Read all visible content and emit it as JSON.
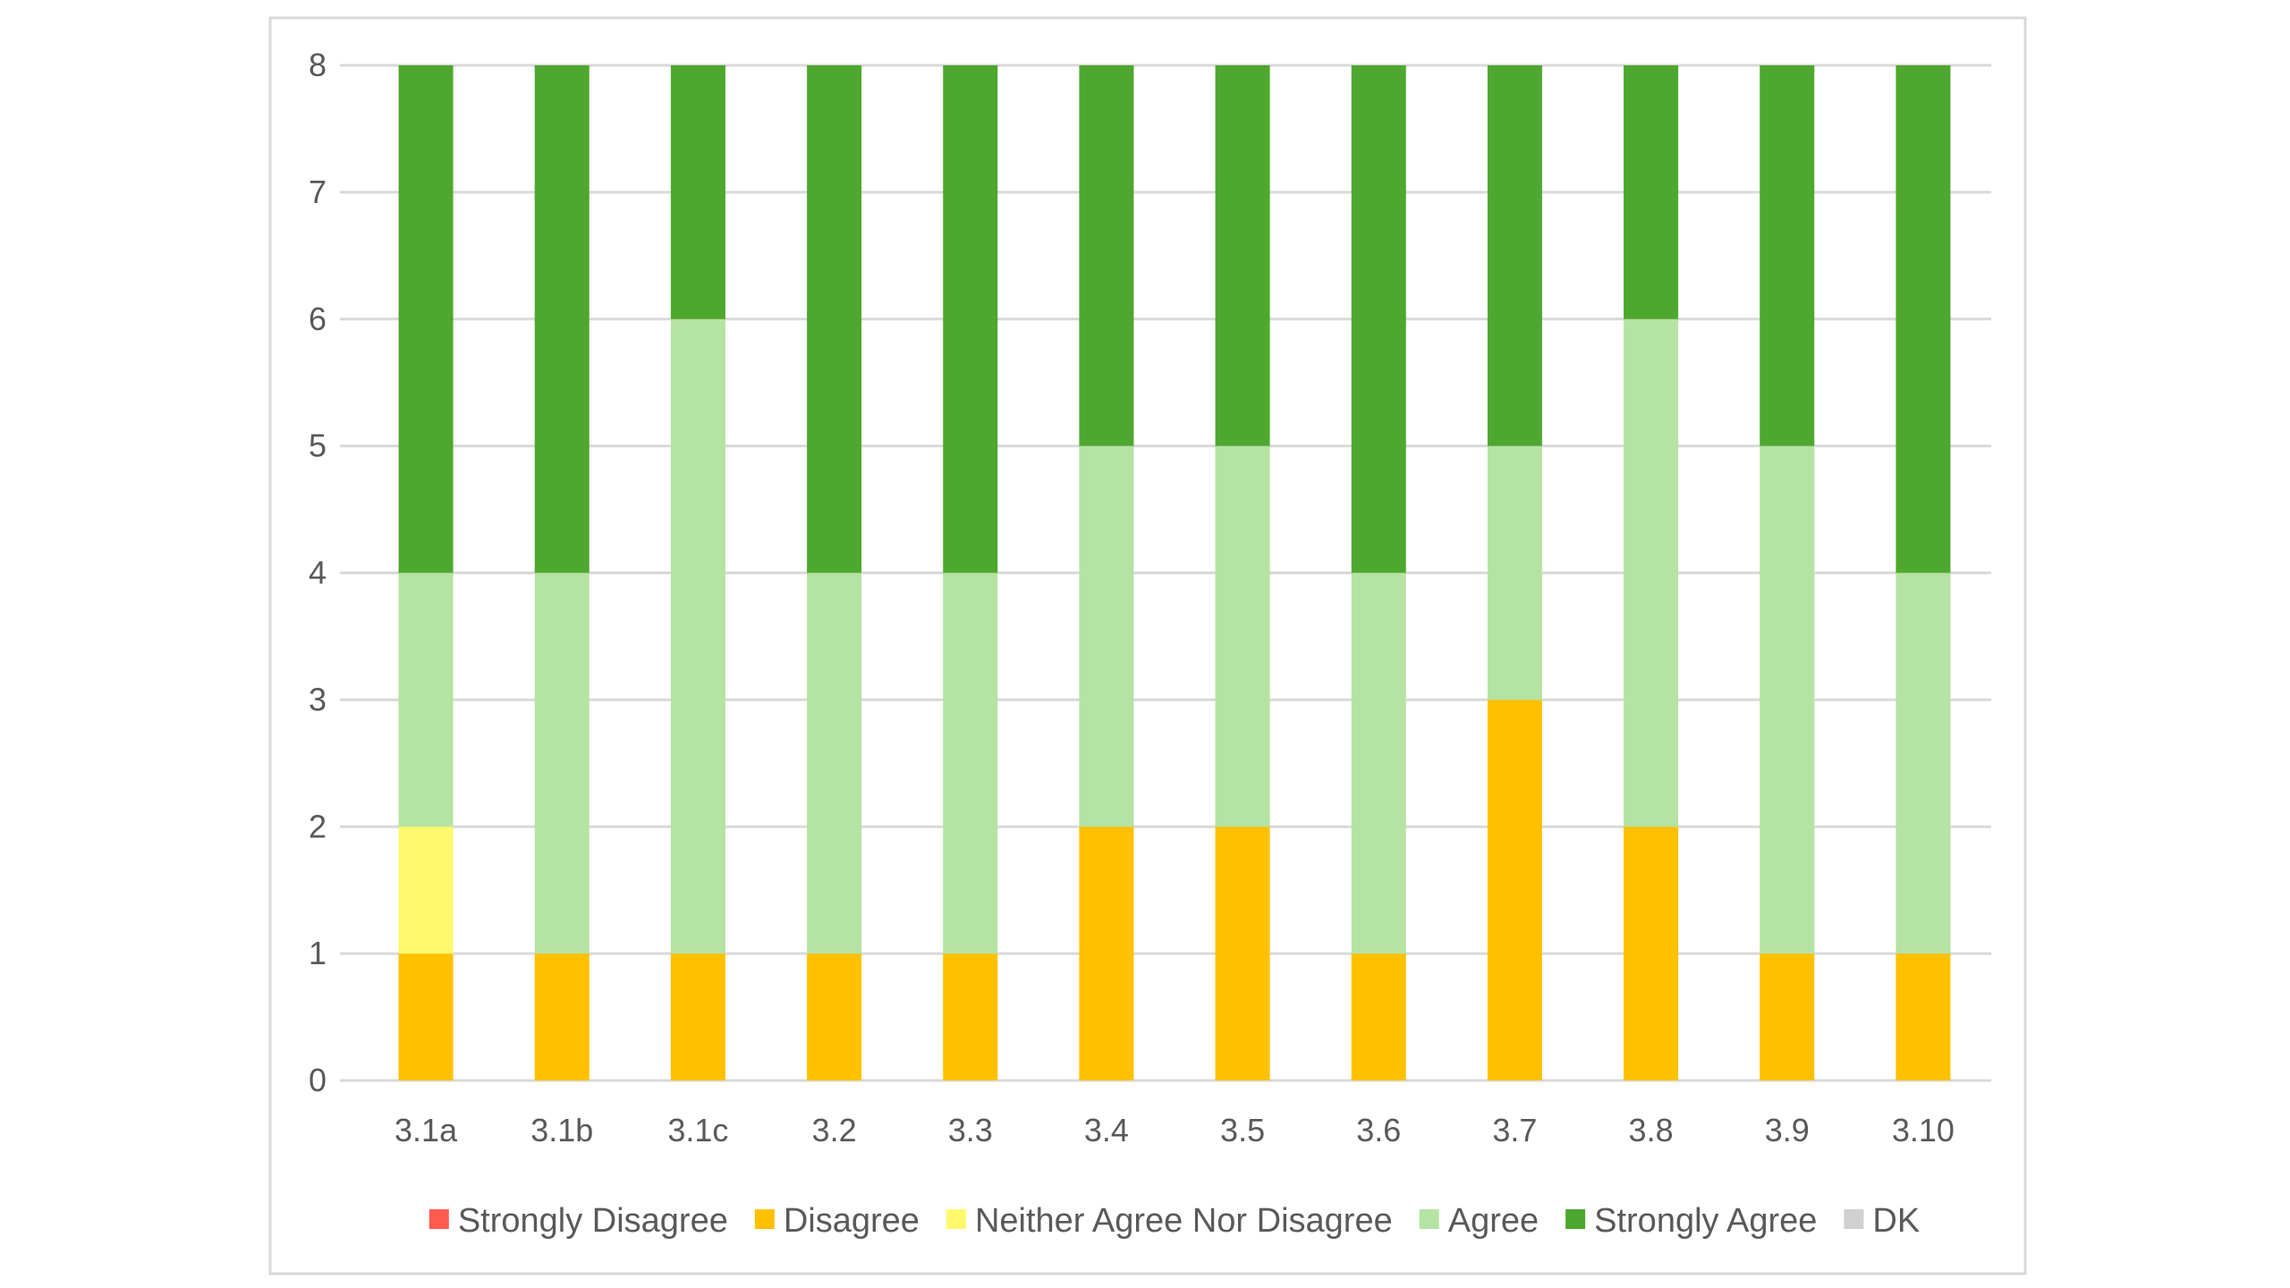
{
  "chart_data": {
    "type": "bar",
    "stacked": true,
    "title": "",
    "xlabel": "",
    "ylabel": "",
    "ylim": [
      0,
      8
    ],
    "yticks": [
      0,
      1,
      2,
      3,
      4,
      5,
      6,
      7,
      8
    ],
    "grid": true,
    "legend_position": "bottom",
    "categories": [
      "3.1a",
      "3.1b",
      "3.1c",
      "3.2",
      "3.3",
      "3.4",
      "3.5",
      "3.6",
      "3.7",
      "3.8",
      "3.9",
      "3.10"
    ],
    "series": [
      {
        "name": "Strongly Disagree",
        "color": "#ff5b4f",
        "values": [
          0,
          0,
          0,
          0,
          0,
          0,
          0,
          0,
          0,
          0,
          0,
          0
        ]
      },
      {
        "name": "Disagree",
        "color": "#ffc000",
        "values": [
          1,
          1,
          1,
          1,
          1,
          2,
          2,
          1,
          3,
          2,
          1,
          1
        ]
      },
      {
        "name": "Neither Agree Nor Disagree",
        "color": "#fff96b",
        "values": [
          1,
          0,
          0,
          0,
          0,
          0,
          0,
          0,
          0,
          0,
          0,
          0
        ]
      },
      {
        "name": "Agree",
        "color": "#b5e3a2",
        "values": [
          2,
          3,
          5,
          3,
          3,
          3,
          3,
          3,
          2,
          4,
          4,
          3
        ]
      },
      {
        "name": "Strongly Agree",
        "color": "#4ea72e",
        "values": [
          4,
          4,
          2,
          4,
          4,
          3,
          3,
          4,
          3,
          2,
          3,
          4
        ]
      },
      {
        "name": "DK",
        "color": "#d0d0d0",
        "values": [
          0,
          0,
          0,
          0,
          0,
          0,
          0,
          0,
          0,
          0,
          0,
          0
        ]
      }
    ]
  }
}
